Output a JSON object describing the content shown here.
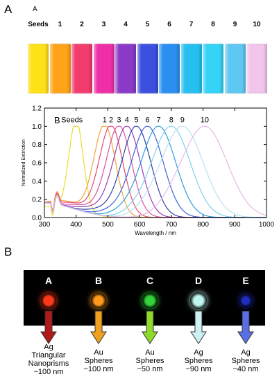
{
  "panel_labels": {
    "top": "A",
    "bottom": "B"
  },
  "vial_photo": {
    "inset_letter": "A",
    "labels": [
      "Seeds",
      "1",
      "2",
      "3",
      "4",
      "5",
      "6",
      "7",
      "8",
      "9",
      "10"
    ],
    "colors": [
      "#ffe11a",
      "#ffa318",
      "#f23c6e",
      "#ee2fa7",
      "#8a3ac7",
      "#3a4fde",
      "#2a8ff0",
      "#25c0f0",
      "#35d3f5",
      "#5fc8f2",
      "#f2c6ec"
    ]
  },
  "chart_data": {
    "type": "line",
    "inset_letter": "B",
    "xlabel": "Wavelength / nm",
    "ylabel": "Normalized Extinction",
    "xlim": [
      300,
      1000
    ],
    "ylim": [
      0,
      1.2
    ],
    "xticks": [
      "300",
      "400",
      "500",
      "600",
      "700",
      "800",
      "900",
      "1000"
    ],
    "yticks": [
      "0.0",
      "0.2",
      "0.4",
      "0.6",
      "0.8",
      "1.0",
      "1.2"
    ],
    "series": [
      {
        "name": "Seeds",
        "peak_nm": 400,
        "width_nm": 32,
        "color": "#e9df2a"
      },
      {
        "name": "1",
        "peak_nm": 490,
        "width_nm": 48,
        "color": "#f6a13a"
      },
      {
        "name": "2",
        "peak_nm": 510,
        "width_nm": 52,
        "color": "#e2466b"
      },
      {
        "name": "3",
        "peak_nm": 535,
        "width_nm": 56,
        "color": "#d94fa2"
      },
      {
        "name": "4",
        "peak_nm": 560,
        "width_nm": 60,
        "color": "#9b3bb7"
      },
      {
        "name": "5",
        "peak_nm": 590,
        "width_nm": 64,
        "color": "#2f3fa6"
      },
      {
        "name": "6",
        "peak_nm": 625,
        "width_nm": 70,
        "color": "#3a63d8"
      },
      {
        "name": "7",
        "peak_nm": 660,
        "width_nm": 76,
        "color": "#2a9fd8"
      },
      {
        "name": "8",
        "peak_nm": 700,
        "width_nm": 84,
        "color": "#7fd0ee"
      },
      {
        "name": "9",
        "peak_nm": 735,
        "width_nm": 92,
        "color": "#b9dff2"
      },
      {
        "name": "10",
        "peak_nm": 805,
        "width_nm": 100,
        "color": "#e6b8e2"
      }
    ]
  },
  "nanoparticles": [
    {
      "letter": "A",
      "color": "#ff3a1a",
      "arrow_color": "#b01a1a",
      "caption": "Ag\nTriangular\nNanoprisms\n~100 nm"
    },
    {
      "letter": "B",
      "color": "#ff9a1a",
      "arrow_color": "#f0a020",
      "caption": "Au\nSpheres\n~100 nm"
    },
    {
      "letter": "C",
      "color": "#33d43a",
      "arrow_color": "#8ed92a",
      "caption": "Au\nSpheres\n~50 nm"
    },
    {
      "letter": "D",
      "color": "#bff6ee",
      "arrow_color": "#cdf0f2",
      "caption": "Ag\nSpheres\n~90 nm"
    },
    {
      "letter": "E",
      "color": "#1f2dbf",
      "arrow_color": "#5a6ee6",
      "caption": "Ag\nSpheres\n~40 nm"
    }
  ]
}
